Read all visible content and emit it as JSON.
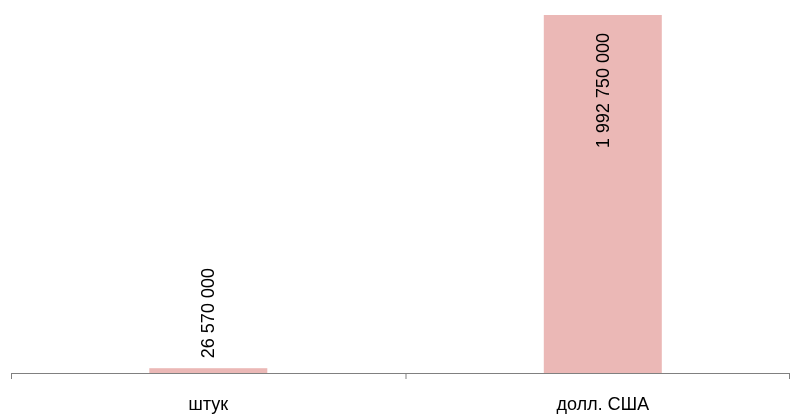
{
  "chart_data": {
    "type": "bar",
    "categories": [
      "штук",
      "долл. США"
    ],
    "values": [
      26570000,
      1992750000
    ],
    "data_labels": [
      "26 570 000",
      "1 992 750 000"
    ],
    "title": "",
    "xlabel": "",
    "ylabel": "",
    "ylim": [
      0,
      1992750000
    ],
    "grid": false,
    "legend": "none",
    "colors": {
      "bar": "#EBB8B6",
      "axis": "#808080",
      "text": "#000000"
    }
  }
}
